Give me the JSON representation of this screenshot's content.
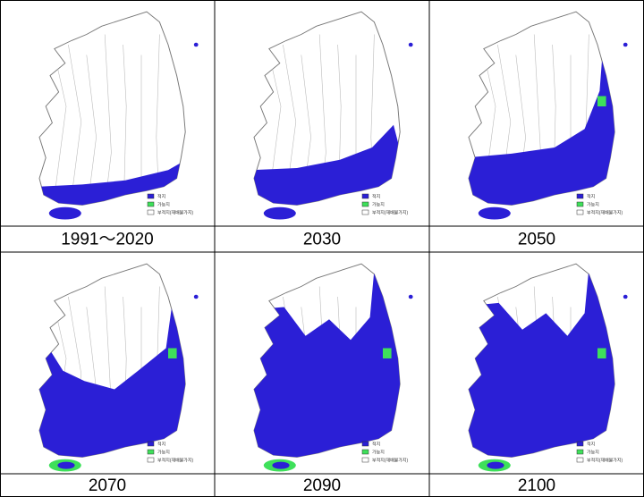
{
  "panels": [
    {
      "label": "1991～2020"
    },
    {
      "label": "2030"
    },
    {
      "label": "2050"
    },
    {
      "label": "2070"
    },
    {
      "label": "2090"
    },
    {
      "label": "2100"
    }
  ],
  "legend": [
    "적지",
    "가능지",
    "부적지(재배불가지)"
  ]
}
